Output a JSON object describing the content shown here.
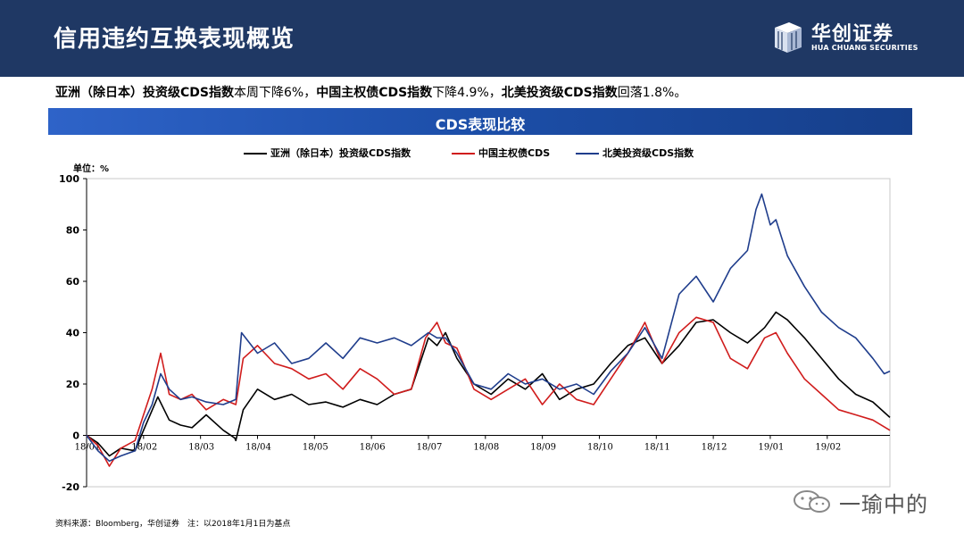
{
  "header": {
    "title": "信用违约互换表现概览",
    "logo_cn": "华创证券",
    "logo_en": "HUA CHUANG SECURITIES"
  },
  "summary": {
    "part1_bold": "亚洲（除日本）投资级CDS指数",
    "part1_text": "本周下降6%，",
    "part2_bold": "中国主权债CDS指数",
    "part2_text": "下降4.9%，",
    "part3_bold": "北美投资级CDS指数",
    "part3_text": "回落1.8%。"
  },
  "banner": {
    "title": "CDS表现比较"
  },
  "unit_label": "单位：%",
  "source": "资料来源：Bloomberg，华创证券　注：以2018年1月1日为基点",
  "watermark": "一瑜中的",
  "colors": {
    "asia": "#000000",
    "china": "#d01c1c",
    "na": "#1f3d8c",
    "header": "#1f3864"
  },
  "chart_data": {
    "type": "line",
    "title": "CDS表现比较",
    "xlabel": "",
    "ylabel": "单位：%",
    "ylim": [
      -20,
      100
    ],
    "yticks": [
      -20,
      0,
      20,
      40,
      60,
      80,
      100
    ],
    "x_range": [
      0,
      14.1
    ],
    "x_ticks": [
      {
        "label": "18/01",
        "x": 0
      },
      {
        "label": "18/02",
        "x": 1
      },
      {
        "label": "18/03",
        "x": 2
      },
      {
        "label": "18/04",
        "x": 3
      },
      {
        "label": "18/05",
        "x": 4
      },
      {
        "label": "18/06",
        "x": 5
      },
      {
        "label": "18/07",
        "x": 6
      },
      {
        "label": "18/08",
        "x": 7
      },
      {
        "label": "18/09",
        "x": 8
      },
      {
        "label": "18/10",
        "x": 9
      },
      {
        "label": "18/11",
        "x": 10
      },
      {
        "label": "18/12",
        "x": 11
      },
      {
        "label": "19/01",
        "x": 12
      },
      {
        "label": "19/02",
        "x": 13
      }
    ],
    "series": [
      {
        "name": "亚洲（除日本）投资级CDS指数",
        "color": "#000000",
        "x": [
          0,
          0.2,
          0.4,
          0.6,
          0.85,
          1.0,
          1.25,
          1.45,
          1.65,
          1.85,
          2.1,
          2.4,
          2.6,
          2.62,
          2.75,
          3.0,
          3.3,
          3.6,
          3.9,
          4.2,
          4.5,
          4.8,
          5.1,
          5.4,
          5.7,
          6.0,
          6.15,
          6.3,
          6.5,
          6.8,
          7.1,
          7.4,
          7.7,
          8.0,
          8.3,
          8.6,
          8.9,
          9.2,
          9.5,
          9.8,
          10.1,
          10.4,
          10.7,
          11.0,
          11.3,
          11.6,
          11.9,
          12.1,
          12.3,
          12.6,
          12.9,
          13.2,
          13.5,
          13.8,
          14.1
        ],
        "values": [
          0,
          -3,
          -8,
          -5,
          -6,
          2,
          15,
          6,
          4,
          3,
          8,
          2,
          -1,
          -2,
          10,
          18,
          14,
          16,
          12,
          13,
          11,
          14,
          12,
          16,
          18,
          38,
          35,
          40,
          30,
          20,
          16,
          22,
          18,
          24,
          14,
          18,
          20,
          28,
          35,
          38,
          28,
          35,
          44,
          45,
          40,
          36,
          42,
          48,
          45,
          38,
          30,
          22,
          16,
          13,
          7
        ]
      },
      {
        "name": "中国主权债CDS",
        "color": "#d01c1c",
        "x": [
          0,
          0.2,
          0.4,
          0.6,
          0.85,
          1.0,
          1.15,
          1.3,
          1.45,
          1.65,
          1.85,
          2.1,
          2.4,
          2.62,
          2.75,
          3.0,
          3.3,
          3.6,
          3.9,
          4.2,
          4.5,
          4.8,
          5.1,
          5.4,
          5.7,
          5.95,
          6.15,
          6.3,
          6.5,
          6.8,
          7.1,
          7.4,
          7.7,
          8.0,
          8.3,
          8.6,
          8.9,
          9.2,
          9.5,
          9.8,
          10.1,
          10.4,
          10.7,
          11.0,
          11.3,
          11.6,
          11.9,
          12.1,
          12.3,
          12.6,
          12.9,
          13.2,
          13.5,
          13.8,
          14.1
        ],
        "values": [
          0,
          -4,
          -12,
          -5,
          -2,
          8,
          18,
          32,
          16,
          14,
          16,
          10,
          14,
          12,
          30,
          35,
          28,
          26,
          22,
          24,
          18,
          26,
          22,
          16,
          18,
          38,
          44,
          36,
          34,
          18,
          14,
          18,
          22,
          12,
          20,
          14,
          12,
          22,
          32,
          44,
          28,
          40,
          46,
          44,
          30,
          26,
          38,
          40,
          32,
          22,
          16,
          10,
          8,
          6,
          2
        ]
      },
      {
        "name": "北美投资级CDS指数",
        "color": "#1f3d8c",
        "x": [
          0,
          0.2,
          0.4,
          0.6,
          0.85,
          1.0,
          1.15,
          1.3,
          1.45,
          1.65,
          1.85,
          2.1,
          2.4,
          2.62,
          2.72,
          3.0,
          3.3,
          3.6,
          3.9,
          4.2,
          4.5,
          4.8,
          5.1,
          5.4,
          5.7,
          6.0,
          6.15,
          6.3,
          6.5,
          6.8,
          7.1,
          7.4,
          7.7,
          8.0,
          8.3,
          8.6,
          8.9,
          9.2,
          9.5,
          9.8,
          10.1,
          10.4,
          10.7,
          11.0,
          11.3,
          11.6,
          11.75,
          11.85,
          12.0,
          12.1,
          12.3,
          12.6,
          12.9,
          13.2,
          13.5,
          13.8,
          14.0,
          14.1
        ],
        "values": [
          0,
          -6,
          -10,
          -8,
          -6,
          5,
          12,
          24,
          18,
          14,
          15,
          13,
          12,
          14,
          40,
          32,
          36,
          28,
          30,
          36,
          30,
          38,
          36,
          38,
          35,
          40,
          38,
          38,
          32,
          20,
          18,
          24,
          20,
          22,
          18,
          20,
          16,
          25,
          32,
          42,
          30,
          55,
          62,
          52,
          65,
          72,
          88,
          94,
          82,
          84,
          70,
          58,
          48,
          42,
          38,
          30,
          24,
          25
        ]
      }
    ]
  }
}
